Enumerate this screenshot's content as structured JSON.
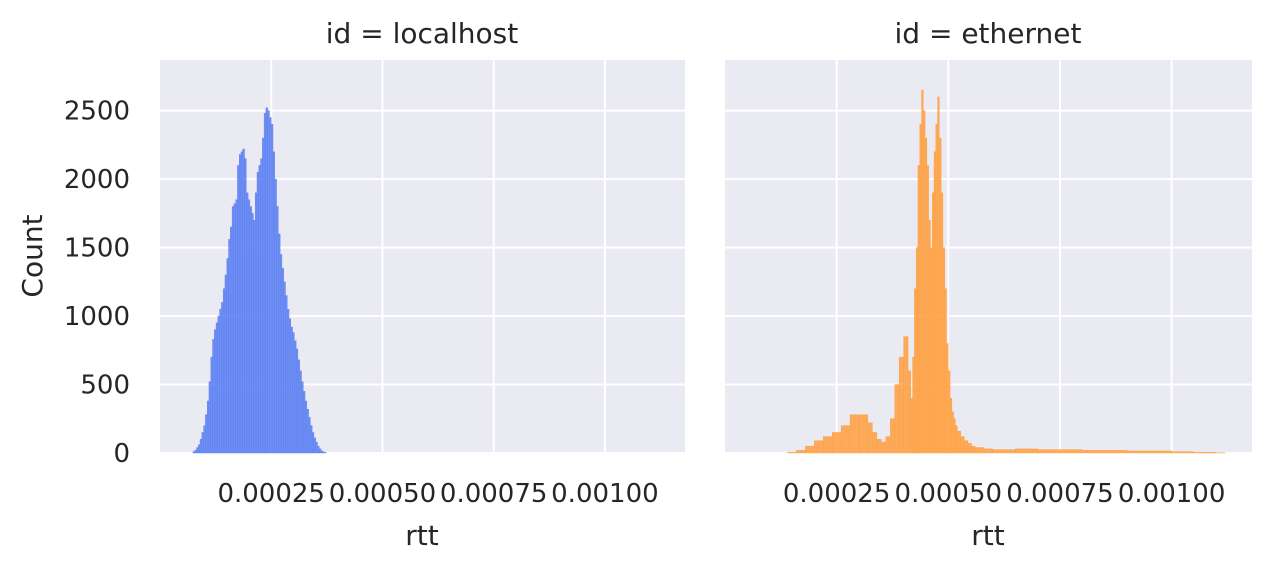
{
  "chart_data": [
    {
      "type": "histogram",
      "title": "id = localhost",
      "xlabel": "rtt",
      "ylabel": "Count",
      "xlim": [
        0,
        0.00118
      ],
      "ylim": [
        0,
        2870
      ],
      "x_ticks": [
        "0.00025",
        "0.00050",
        "0.00075",
        "0.00100"
      ],
      "x_tick_values": [
        0.00025,
        0.0005,
        0.00075,
        0.001
      ],
      "y_ticks": [
        "0",
        "500",
        "1000",
        "1500",
        "2000",
        "2500"
      ],
      "y_tick_values": [
        0,
        500,
        1000,
        1500,
        2000,
        2500
      ],
      "color": "#5b7ff2",
      "bin_width": 4e-06,
      "bins_x_start": [
        7e-05,
        7.4e-05,
        7.8e-05,
        8.2e-05,
        8.6e-05,
        9e-05,
        9.4e-05,
        9.8e-05,
        0.000102,
        0.000106,
        0.00011,
        0.000114,
        0.000118,
        0.000122,
        0.000126,
        0.00013,
        0.000134,
        0.000138,
        0.000142,
        0.000146,
        0.00015,
        0.000154,
        0.000158,
        0.000162,
        0.000166,
        0.00017,
        0.000174,
        0.000178,
        0.000182,
        0.000186,
        0.00019,
        0.000194,
        0.000198,
        0.000202,
        0.000206,
        0.00021,
        0.000214,
        0.000218,
        0.000222,
        0.000226,
        0.00023,
        0.000234,
        0.000238,
        0.000242,
        0.000246,
        0.00025,
        0.000254,
        0.000258,
        0.000262,
        0.000266,
        0.00027,
        0.000274,
        0.000278,
        0.000282,
        0.000286,
        0.00029,
        0.000294,
        0.000298,
        0.000302,
        0.000306,
        0.00031,
        0.000314,
        0.000318,
        0.000322,
        0.000326,
        0.00033,
        0.000334,
        0.000338,
        0.000342,
        0.000346,
        0.00035,
        0.000354,
        0.000358,
        0.000362,
        0.000366,
        0.00037,
        0.000374
      ],
      "bins_count": [
        0,
        10,
        20,
        40,
        60,
        100,
        150,
        200,
        280,
        380,
        520,
        700,
        830,
        900,
        950,
        1000,
        1050,
        1100,
        1200,
        1300,
        1420,
        1560,
        1650,
        1800,
        1820,
        1850,
        2100,
        2180,
        2200,
        2220,
        2150,
        1900,
        1850,
        1800,
        1750,
        1700,
        1900,
        2050,
        2100,
        2150,
        2300,
        2480,
        2520,
        2500,
        2450,
        2400,
        2200,
        2000,
        1800,
        1600,
        1450,
        1350,
        1250,
        1150,
        1050,
        980,
        920,
        880,
        820,
        760,
        680,
        600,
        520,
        450,
        380,
        320,
        260,
        200,
        150,
        110,
        80,
        50,
        30,
        15,
        8,
        3,
        0
      ],
      "series": [
        {
          "values_ref": "bins_count"
        }
      ]
    },
    {
      "type": "histogram",
      "title": "id = ethernet",
      "xlabel": "rtt",
      "ylabel": "",
      "xlim": [
        0,
        0.00118
      ],
      "ylim": [
        0,
        2870
      ],
      "x_ticks": [
        "0.00025",
        "0.00050",
        "0.00075",
        "0.00100"
      ],
      "x_tick_values": [
        0.00025,
        0.0005,
        0.00075,
        0.001
      ],
      "y_ticks": [
        "0",
        "500",
        "1000",
        "1500",
        "2000",
        "2500"
      ],
      "y_tick_values": [
        0,
        500,
        1000,
        1500,
        2000,
        2500
      ],
      "color": "#ff9f3e",
      "bin_width": 4e-06,
      "bins_x_start": [
        0.00014,
        0.00016,
        0.00018,
        0.0002,
        0.00022,
        0.00024,
        0.00026,
        0.00028,
        0.0003,
        0.00032,
        0.00033,
        0.00034,
        0.00035,
        0.00036,
        0.00037,
        0.00038,
        0.00039,
        0.0004,
        0.00041,
        0.000416,
        0.00042,
        0.000424,
        0.000428,
        0.000432,
        0.000436,
        0.00044,
        0.000444,
        0.000448,
        0.000452,
        0.000456,
        0.00046,
        0.000464,
        0.000468,
        0.000472,
        0.000476,
        0.00048,
        0.000484,
        0.000488,
        0.000492,
        0.000496,
        0.0005,
        0.000504,
        0.000508,
        0.000512,
        0.000516,
        0.00052,
        0.000528,
        0.000536,
        0.000544,
        0.000552,
        0.00056,
        0.00058,
        0.0006,
        0.00065,
        0.0007,
        0.0008,
        0.0009,
        0.001,
        0.00105,
        0.0011,
        0.00112
      ],
      "bins_count": [
        5,
        20,
        50,
        90,
        120,
        150,
        200,
        280,
        280,
        220,
        150,
        100,
        80,
        120,
        250,
        500,
        700,
        850,
        600,
        400,
        700,
        1200,
        1500,
        2100,
        2400,
        2650,
        2500,
        2300,
        2100,
        1700,
        1500,
        1900,
        2200,
        2400,
        2600,
        2300,
        1900,
        1500,
        1200,
        800,
        600,
        400,
        300,
        250,
        200,
        160,
        120,
        90,
        70,
        50,
        40,
        30,
        25,
        30,
        25,
        20,
        15,
        10,
        5,
        2,
        0
      ],
      "series": [
        {
          "values_ref": "bins_count"
        }
      ]
    }
  ]
}
